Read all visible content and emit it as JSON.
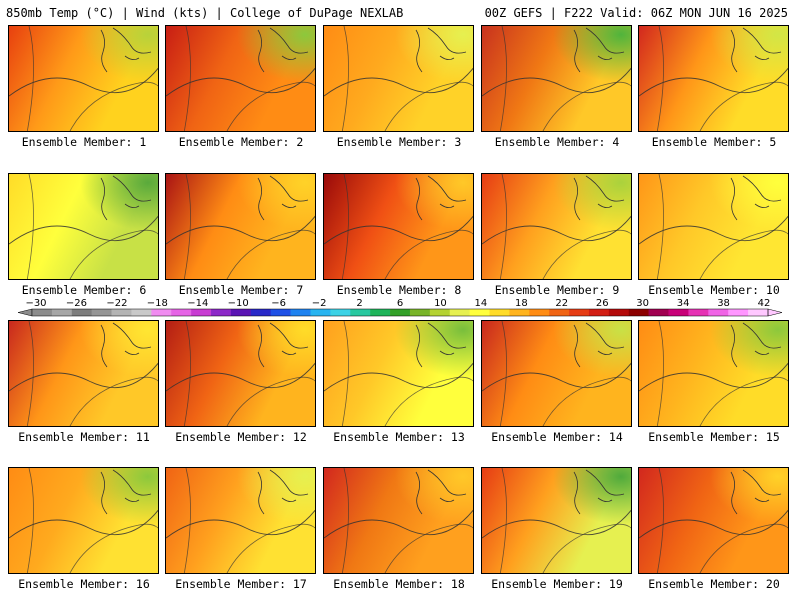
{
  "header": {
    "left": "850mb Temp (°C) | Wind (kts) | College of DuPage NEXLAB",
    "right": "00Z GEFS | F222 Valid: 06Z MON JUN 16 2025"
  },
  "colorbar": {
    "labels": [
      "-30",
      "-26",
      "-22",
      "-18",
      "-14",
      "-10",
      "-6",
      "-2",
      "2",
      "6",
      "10",
      "14",
      "18",
      "22",
      "26",
      "30",
      "34",
      "38",
      "42"
    ],
    "colors": [
      "#8c8c8c",
      "#a6a6a6",
      "#7d7d7d",
      "#959595",
      "#b4b4b4",
      "#c9c9c9",
      "#f08cf0",
      "#e664e6",
      "#c83cd2",
      "#8c28c8",
      "#5a14b4",
      "#2828c8",
      "#1e50e6",
      "#1e82f0",
      "#28b4f0",
      "#3cd2e6",
      "#28c8a0",
      "#1eb45a",
      "#32a028",
      "#78b428",
      "#b4d232",
      "#e6f050",
      "#ffff3c",
      "#ffdc28",
      "#ffb41e",
      "#ff8c14",
      "#f06414",
      "#e63c14",
      "#d21e14",
      "#b40a0a",
      "#8c0000",
      "#a00050",
      "#c80078",
      "#e632b4",
      "#f064e6",
      "#ff96ff",
      "#ffc8ff"
    ]
  },
  "members": [
    {
      "label": "Ensemble Member: 1",
      "style": {
        "west": "#e8400f",
        "center": "#ff9a18",
        "east": "#ffd21e",
        "ne": "#b8d23a"
      }
    },
    {
      "label": "Ensemble Member: 2",
      "style": {
        "west": "#c81e14",
        "center": "#f06414",
        "east": "#ff8c14",
        "ne": "#8cc83c"
      }
    },
    {
      "label": "Ensemble Member: 3",
      "style": {
        "west": "#ff8c14",
        "center": "#ffaa1e",
        "east": "#ffd228",
        "ne": "#e6f050"
      }
    },
    {
      "label": "Ensemble Member: 4",
      "style": {
        "west": "#c8321e",
        "center": "#f07814",
        "east": "#ffc828",
        "ne": "#50b43c"
      }
    },
    {
      "label": "Ensemble Member: 5",
      "style": {
        "west": "#d2281e",
        "center": "#ff9618",
        "east": "#ffdc28",
        "ne": "#d2e646"
      }
    },
    {
      "label": "Ensemble Member: 6",
      "style": {
        "west": "#ffdc28",
        "center": "#ffff3c",
        "east": "#c8e146",
        "ne": "#5aaa3c"
      }
    },
    {
      "label": "Ensemble Member: 7",
      "style": {
        "west": "#aa1414",
        "center": "#ff8c14",
        "east": "#ffb41e",
        "ne": "#ffd228"
      }
    },
    {
      "label": "Ensemble Member: 8",
      "style": {
        "west": "#9a0a0a",
        "center": "#f05014",
        "east": "#ff9618",
        "ne": "#ffc828"
      }
    },
    {
      "label": "Ensemble Member: 9",
      "style": {
        "west": "#e63c14",
        "center": "#ffa01e",
        "east": "#ffe132",
        "ne": "#aad23c"
      }
    },
    {
      "label": "Ensemble Member: 10",
      "style": {
        "west": "#ff9618",
        "center": "#ffc828",
        "east": "#ffe632",
        "ne": "#ffff3c"
      }
    },
    {
      "label": "Ensemble Member: 11",
      "style": {
        "west": "#c8281e",
        "center": "#ff9618",
        "east": "#ffc828",
        "ne": "#ffe632"
      }
    },
    {
      "label": "Ensemble Member: 12",
      "style": {
        "west": "#b41e14",
        "center": "#f06414",
        "east": "#ffb41e",
        "ne": "#ffdc28"
      }
    },
    {
      "label": "Ensemble Member: 13",
      "style": {
        "west": "#ffa01e",
        "center": "#ffc828",
        "east": "#ffff3c",
        "ne": "#78be3c"
      }
    },
    {
      "label": "Ensemble Member: 14",
      "style": {
        "west": "#c8281e",
        "center": "#ff8c14",
        "east": "#ffb41e",
        "ne": "#c8e146"
      }
    },
    {
      "label": "Ensemble Member: 15",
      "style": {
        "west": "#ff8c14",
        "center": "#ffb41e",
        "east": "#ffdc28",
        "ne": "#8cc83c"
      }
    },
    {
      "label": "Ensemble Member: 16",
      "style": {
        "west": "#ff8c14",
        "center": "#ffaa1e",
        "east": "#ffe132",
        "ne": "#8cc83c"
      }
    },
    {
      "label": "Ensemble Member: 17",
      "style": {
        "west": "#f06414",
        "center": "#ffa01e",
        "east": "#ffe132",
        "ne": "#e6f050"
      }
    },
    {
      "label": "Ensemble Member: 18",
      "style": {
        "west": "#d2281e",
        "center": "#f07814",
        "east": "#ffa01e",
        "ne": "#ffc828"
      }
    },
    {
      "label": "Ensemble Member: 19",
      "style": {
        "west": "#e63c14",
        "center": "#ffa01e",
        "east": "#e6f050",
        "ne": "#50aa3c"
      }
    },
    {
      "label": "Ensemble Member: 20",
      "style": {
        "west": "#d2281e",
        "center": "#f06414",
        "east": "#ff9618",
        "ne": "#ffd228"
      }
    }
  ]
}
